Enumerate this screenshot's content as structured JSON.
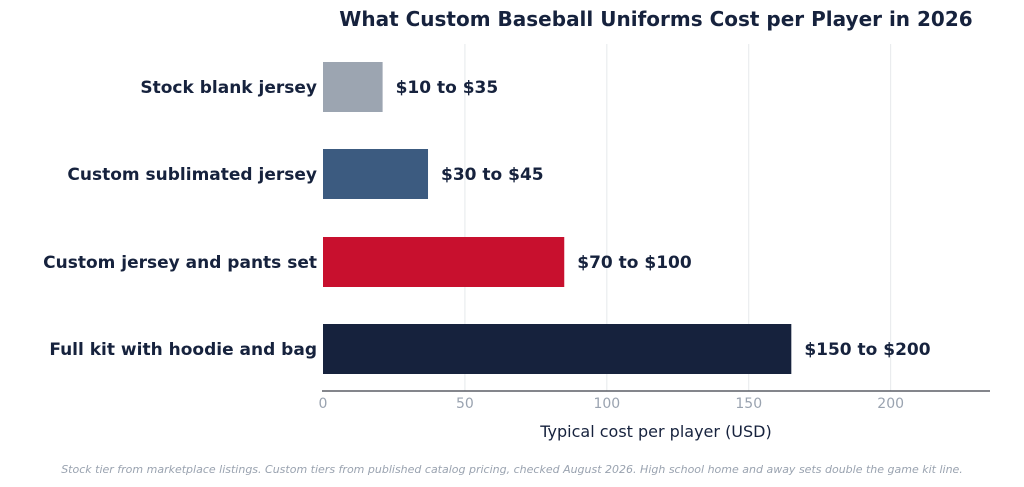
{
  "chart_data": {
    "type": "bar",
    "orientation": "horizontal",
    "title": "What Custom Baseball Uniforms Cost per Player in 2026",
    "xlabel": "Typical cost per player (USD)",
    "ylabel": "",
    "xlim": [
      0,
      235
    ],
    "xticks": [
      0,
      50,
      100,
      150,
      200
    ],
    "grid": "vertical",
    "categories": [
      "Stock blank jersey",
      "Custom sublimated jersey",
      "Custom jersey and pants set",
      "Full kit with hoodie and bag"
    ],
    "values": [
      21,
      37,
      85,
      165
    ],
    "data_labels": [
      "$10 to $35",
      "$30 to $45",
      "$70 to $100",
      "$150 to $200"
    ],
    "colors": [
      "#9ca5b1",
      "#3c5b80",
      "#c8102e",
      "#16223d"
    ]
  },
  "footnote": "Stock tier from marketplace listings. Custom tiers from published catalog pricing, checked August 2026. High school home and away sets double the game kit line."
}
